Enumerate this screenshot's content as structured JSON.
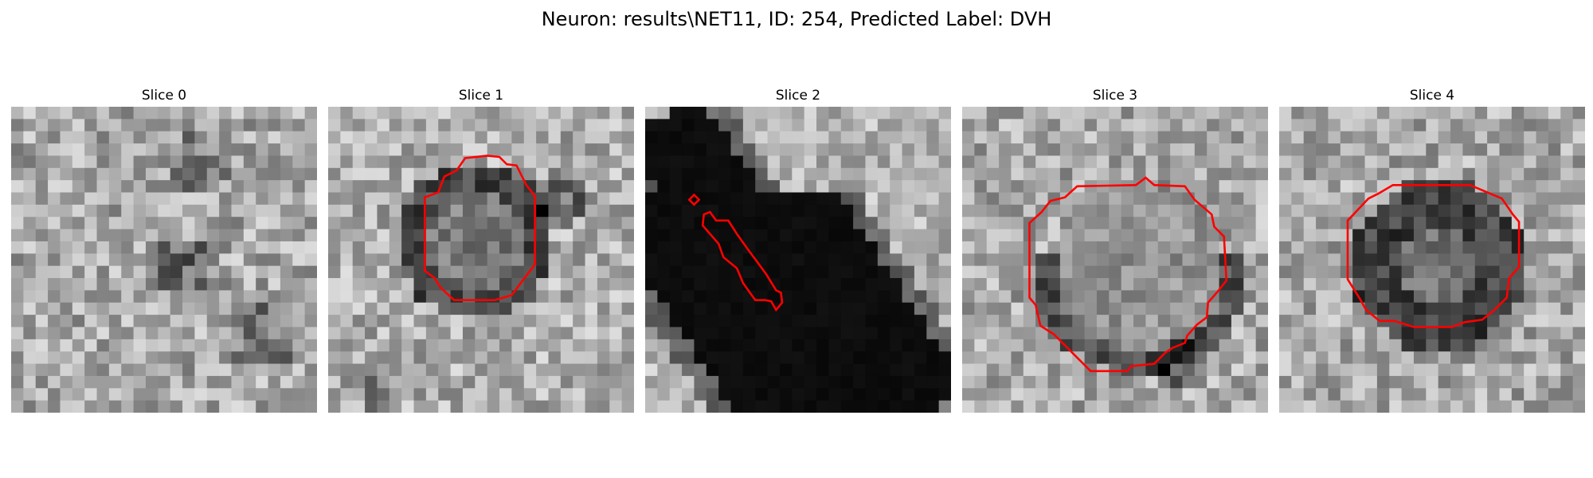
{
  "figure": {
    "title": "Neuron: results\\NET11, ID: 254, Predicted Label: DVH"
  },
  "panels": [
    {
      "title": "Slice 0",
      "image_content": "grayscale-microscopy-texture",
      "contour_color": "#ff0000",
      "has_contour": false
    },
    {
      "title": "Slice 1",
      "image_content": "grayscale-microscopy-texture",
      "contour_color": "#ff0000",
      "has_contour": true
    },
    {
      "title": "Slice 2",
      "image_content": "grayscale-microscopy-texture",
      "contour_color": "#ff0000",
      "has_contour": true
    },
    {
      "title": "Slice 3",
      "image_content": "grayscale-microscopy-texture",
      "contour_color": "#ff0000",
      "has_contour": true
    },
    {
      "title": "Slice 4",
      "image_content": "grayscale-microscopy-texture",
      "contour_color": "#ff0000",
      "has_contour": true
    }
  ]
}
